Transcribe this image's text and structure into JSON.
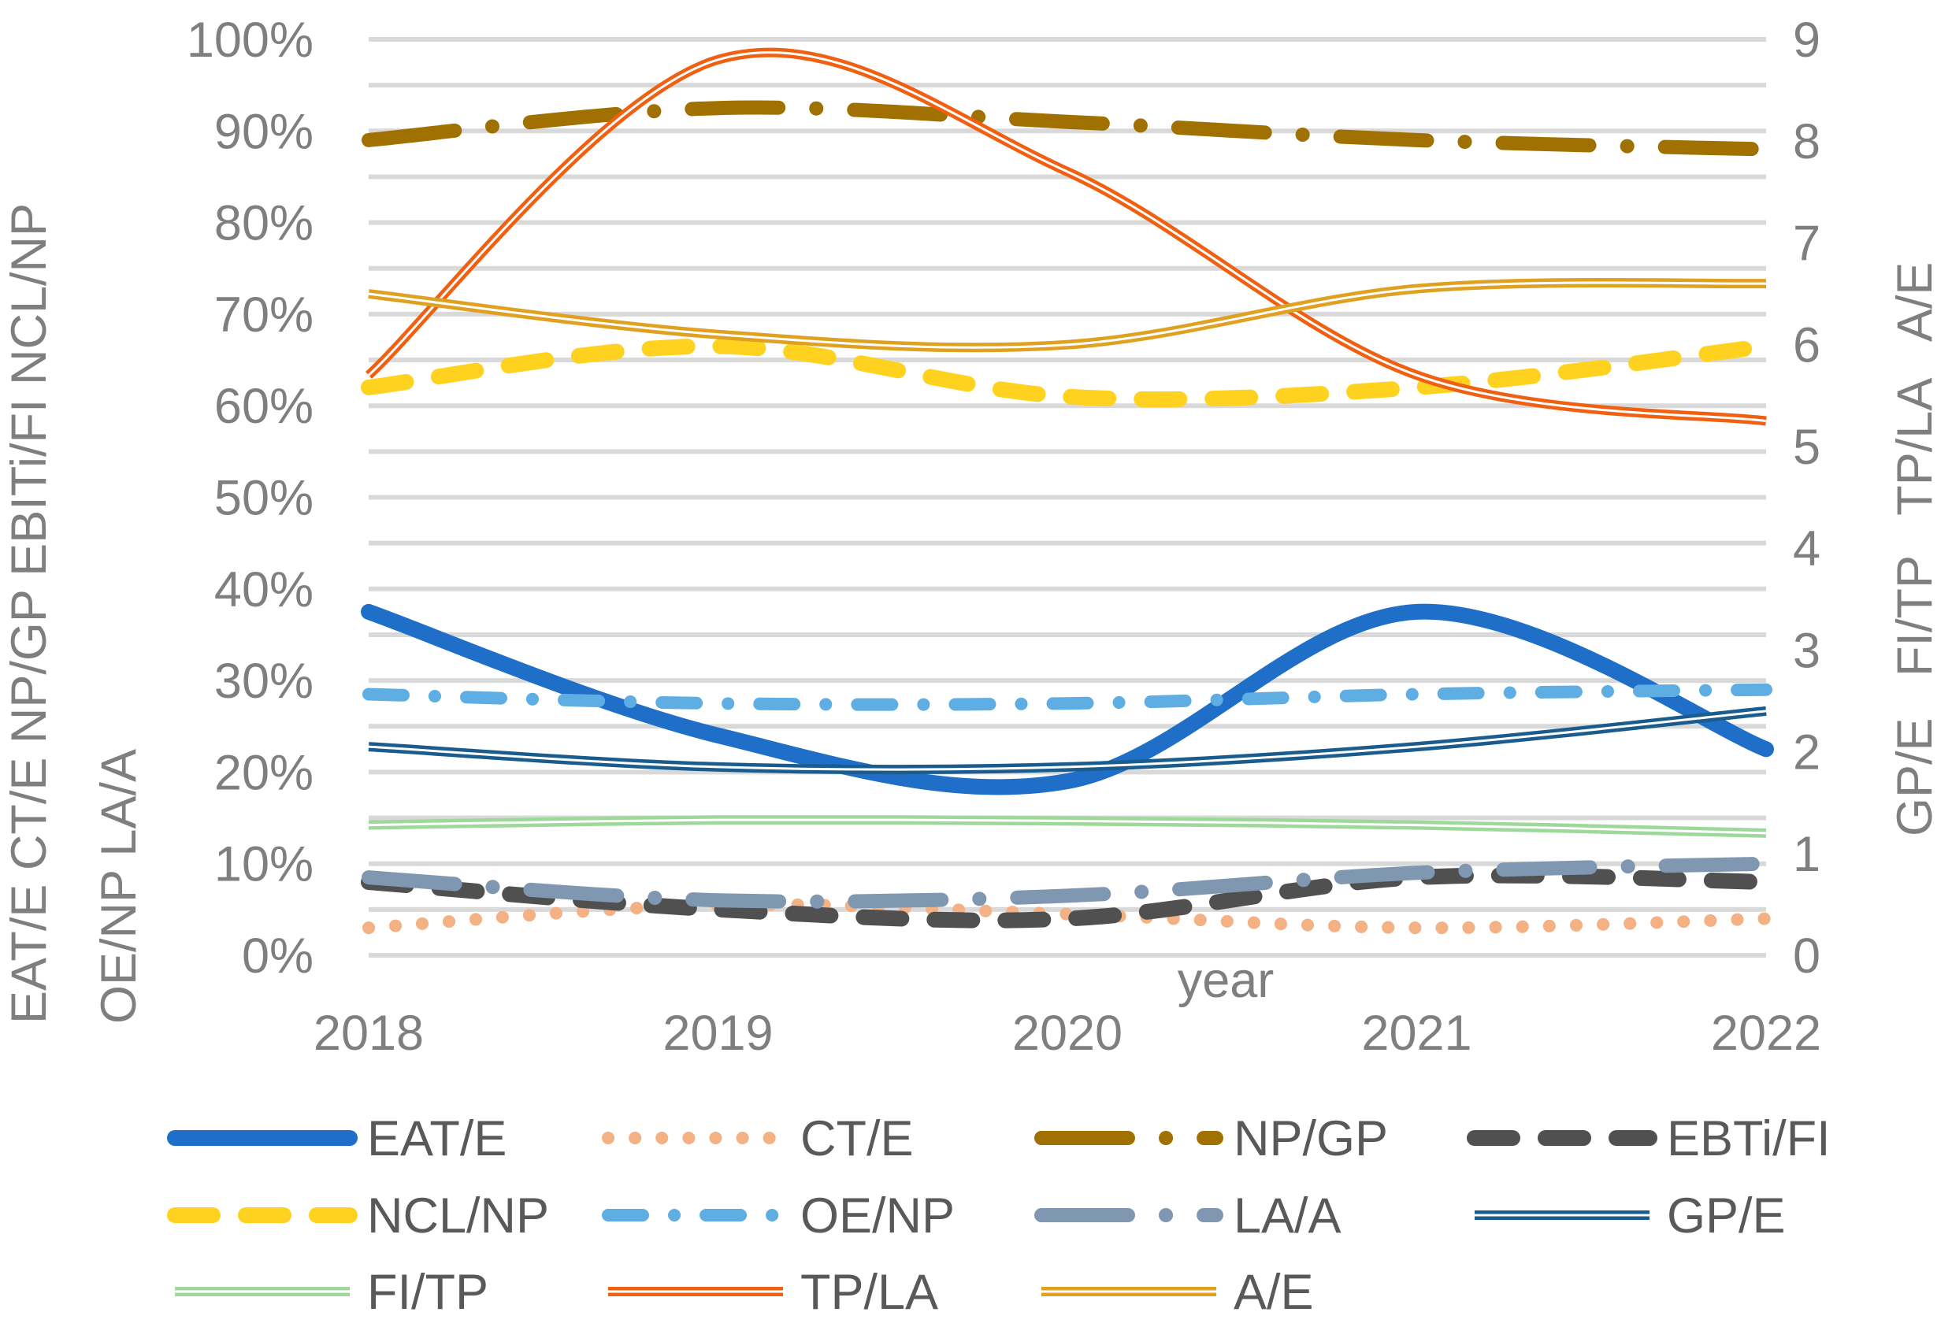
{
  "chart_data": {
    "type": "line",
    "xlabel": "year",
    "x": [
      2018,
      2019,
      2020,
      2021,
      2022
    ],
    "y_left": {
      "label_lines": [
        "EAT/E CT/E  NP/GP  EBITi/FI  NCL/NP",
        "OE/NP  LA/A"
      ],
      "ticks": [
        "0%",
        "10%",
        "20%",
        "30%",
        "40%",
        "50%",
        "60%",
        "70%",
        "80%",
        "90%",
        "100%"
      ],
      "range": [
        0,
        1
      ]
    },
    "y_right": {
      "label_lines": [
        "GP/E   FI/TP   TP/LA   A/E"
      ],
      "ticks": [
        "0",
        "1",
        "2",
        "3",
        "4",
        "5",
        "6",
        "7",
        "8",
        "9"
      ],
      "range": [
        0,
        9
      ]
    },
    "grid": true,
    "legend_position": "bottom",
    "series": [
      {
        "name": "EAT/E",
        "axis": "left",
        "color": "#1f6fc8",
        "style": "solid",
        "values": [
          0.375,
          0.24,
          0.19,
          0.375,
          0.225
        ]
      },
      {
        "name": "CT/E",
        "axis": "left",
        "color": "#f4b183",
        "style": "dot",
        "values": [
          0.03,
          0.055,
          0.045,
          0.03,
          0.04
        ]
      },
      {
        "name": "NP/GP",
        "axis": "left",
        "color": "#a07000",
        "style": "longdashdot",
        "values": [
          0.89,
          0.925,
          0.91,
          0.89,
          0.88
        ]
      },
      {
        "name": "EBTi/FI",
        "axis": "left",
        "color": "#505050",
        "style": "dash",
        "values": [
          0.08,
          0.05,
          0.04,
          0.085,
          0.08
        ]
      },
      {
        "name": "NCL/NP",
        "axis": "left",
        "color": "#ffd21f",
        "style": "dash",
        "values": [
          0.62,
          0.665,
          0.61,
          0.62,
          0.665
        ]
      },
      {
        "name": "OE/NP",
        "axis": "left",
        "color": "#5eaee4",
        "style": "dashdot",
        "values": [
          0.285,
          0.275,
          0.275,
          0.285,
          0.29
        ]
      },
      {
        "name": "LA/A",
        "axis": "left",
        "color": "#8097b1",
        "style": "longdashdot",
        "values": [
          0.085,
          0.06,
          0.065,
          0.09,
          0.1
        ]
      },
      {
        "name": "GP/E",
        "axis": "right",
        "color": "#1a5c8e",
        "style": "double",
        "values": [
          2.05,
          1.85,
          1.85,
          2.05,
          2.4
        ]
      },
      {
        "name": "FI/TP",
        "axis": "right",
        "color": "#9ed89a",
        "style": "double",
        "values": [
          1.28,
          1.33,
          1.32,
          1.28,
          1.2
        ]
      },
      {
        "name": "TP/LA",
        "axis": "right",
        "color": "#f06010",
        "style": "double",
        "values": [
          5.7,
          8.8,
          7.7,
          5.7,
          5.25
        ]
      },
      {
        "name": "A/E",
        "axis": "right",
        "color": "#e0a020",
        "style": "double",
        "values": [
          6.5,
          6.1,
          6.0,
          6.55,
          6.6
        ]
      }
    ]
  }
}
